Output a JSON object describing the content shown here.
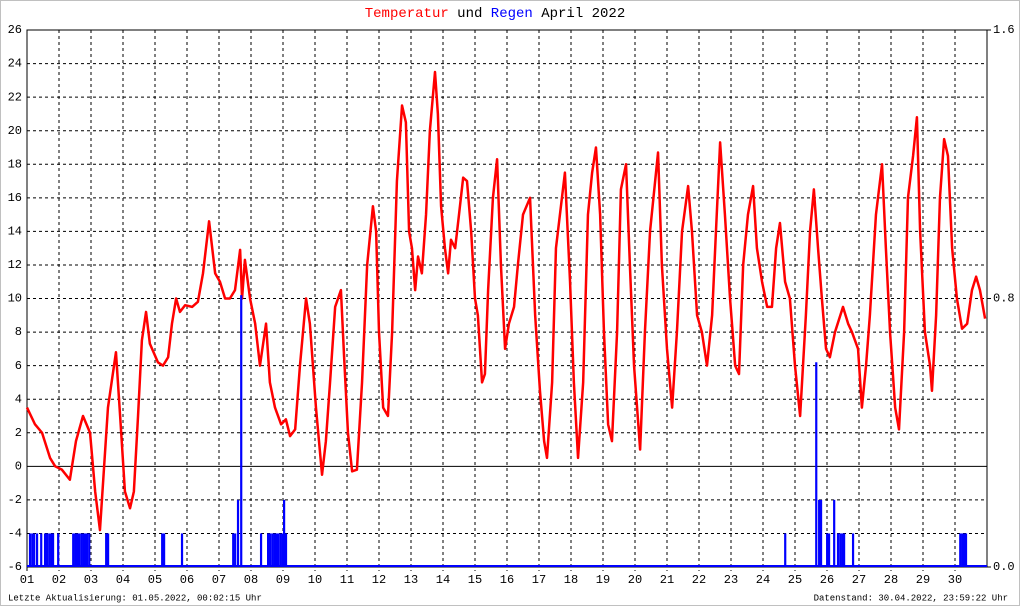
{
  "chart_data": {
    "type": "line",
    "title_joiner": "und",
    "title_suffix": "April 2022",
    "xlim": [
      1,
      31
    ],
    "xticks": [
      {
        "value": 1,
        "label": "01"
      },
      {
        "value": 2,
        "label": "02"
      },
      {
        "value": 3,
        "label": "03"
      },
      {
        "value": 4,
        "label": "04"
      },
      {
        "value": 5,
        "label": "05"
      },
      {
        "value": 6,
        "label": "06"
      },
      {
        "value": 7,
        "label": "07"
      },
      {
        "value": 8,
        "label": "08"
      },
      {
        "value": 9,
        "label": "09"
      },
      10,
      11,
      12,
      13,
      14,
      15,
      16,
      17,
      18,
      19,
      20,
      21,
      22,
      23,
      24,
      25,
      26,
      27,
      28,
      29,
      30
    ],
    "ylim": [
      -6,
      26
    ],
    "yticks": [
      -6,
      -4,
      -2,
      0,
      2,
      4,
      6,
      8,
      10,
      12,
      14,
      16,
      18,
      20,
      22,
      24,
      26
    ],
    "y2lim": [
      0,
      1.6
    ],
    "y2ticks": [
      {
        "value": 0,
        "label": "0.0"
      },
      0.8,
      1.6
    ],
    "grid": true,
    "series": [
      {
        "name": "Temperatur",
        "color": "#ff0000",
        "x": [
          1.0,
          1.25,
          1.47,
          1.72,
          1.88,
          2.09,
          2.34,
          2.53,
          2.75,
          2.97,
          3.13,
          3.28,
          3.41,
          3.53,
          3.78,
          3.91,
          4.06,
          4.22,
          4.34,
          4.47,
          4.59,
          4.72,
          4.84,
          5.09,
          5.25,
          5.41,
          5.53,
          5.66,
          5.78,
          5.94,
          6.16,
          6.34,
          6.5,
          6.69,
          6.88,
          7.03,
          7.19,
          7.34,
          7.5,
          7.66,
          7.72,
          7.81,
          7.97,
          8.13,
          8.28,
          8.47,
          8.59,
          8.75,
          8.94,
          9.09,
          9.22,
          9.38,
          9.53,
          9.72,
          9.84,
          10.03,
          10.22,
          10.34,
          10.47,
          10.63,
          10.81,
          10.91,
          11.03,
          11.16,
          11.31,
          11.47,
          11.63,
          11.81,
          11.91,
          12.0,
          12.13,
          12.28,
          12.41,
          12.56,
          12.72,
          12.84,
          12.94,
          13.03,
          13.13,
          13.22,
          13.34,
          13.47,
          13.59,
          13.75,
          13.84,
          13.94,
          14.06,
          14.16,
          14.25,
          14.38,
          14.5,
          14.63,
          14.75,
          14.88,
          15.0,
          15.09,
          15.22,
          15.31,
          15.41,
          15.56,
          15.69,
          15.81,
          15.94,
          16.06,
          16.22,
          16.34,
          16.5,
          16.72,
          16.88,
          17.03,
          17.16,
          17.25,
          17.41,
          17.53,
          17.81,
          17.97,
          18.09,
          18.22,
          18.38,
          18.53,
          18.66,
          18.78,
          18.91,
          19.03,
          19.16,
          19.28,
          19.44,
          19.56,
          19.72,
          19.84,
          19.97,
          20.16,
          20.31,
          20.47,
          20.72,
          20.84,
          21.0,
          21.16,
          21.31,
          21.47,
          21.66,
          21.78,
          21.94,
          22.09,
          22.25,
          22.41,
          22.53,
          22.66,
          22.81,
          22.97,
          23.13,
          23.25,
          23.38,
          23.53,
          23.69,
          23.81,
          23.97,
          24.13,
          24.28,
          24.41,
          24.53,
          24.69,
          24.84,
          25.0,
          25.16,
          25.34,
          25.47,
          25.59,
          25.72,
          25.84,
          25.97,
          26.09,
          26.25,
          26.5,
          26.66,
          26.78,
          26.97,
          27.09,
          27.22,
          27.34,
          27.53,
          27.72,
          27.84,
          27.97,
          28.13,
          28.25,
          28.41,
          28.53,
          28.69,
          28.81,
          28.91,
          29.06,
          29.22,
          29.28,
          29.41,
          29.53,
          29.66,
          29.78,
          29.91,
          30.06,
          30.22,
          30.38,
          30.53,
          30.66,
          30.78,
          30.94
        ],
        "values": [
          3.5,
          2.5,
          2.0,
          0.5,
          0,
          -0.2,
          -0.8,
          1.5,
          3.0,
          2.0,
          -1.5,
          -3.8,
          0,
          3.5,
          6.8,
          3,
          -1.5,
          -2.5,
          -1.5,
          3,
          7.5,
          9.2,
          7.3,
          6.2,
          6.0,
          6.5,
          8.5,
          10.0,
          9.2,
          9.6,
          9.5,
          9.8,
          11.5,
          14.6,
          11.5,
          11.0,
          10,
          10,
          10.5,
          12.9,
          10.0,
          12.3,
          10.0,
          8.5,
          6.0,
          8.5,
          5.0,
          3.5,
          2.5,
          2.8,
          1.8,
          2.2,
          6,
          10.0,
          8.5,
          3.5,
          -0.5,
          1.5,
          5,
          9.5,
          10.5,
          6.5,
          2,
          -0.3,
          -0.2,
          5,
          12,
          15.5,
          14,
          8,
          3.5,
          3.0,
          8,
          17,
          21.5,
          20.5,
          14,
          13,
          10.5,
          12.5,
          11.5,
          15,
          20,
          23.5,
          21,
          15.5,
          13,
          11.5,
          13.5,
          13.0,
          15,
          17.2,
          17,
          14,
          10,
          9,
          5,
          5.5,
          10.5,
          16,
          18.3,
          12,
          7,
          8.5,
          9.5,
          12,
          15,
          16,
          9,
          4.5,
          1.5,
          0.5,
          5,
          13,
          17.5,
          11,
          5,
          0.5,
          5,
          15,
          17.5,
          19,
          15,
          8,
          2.5,
          1.5,
          8,
          16.5,
          18,
          12,
          6,
          1.0,
          8,
          14,
          18.7,
          12,
          7,
          3.5,
          8,
          14,
          16.7,
          14,
          9,
          8,
          6.0,
          9,
          14,
          19.3,
          15,
          10,
          6,
          5.5,
          12,
          15,
          16.7,
          13,
          11,
          9.5,
          9.5,
          13,
          14.5,
          11,
          10,
          6,
          3,
          9,
          14,
          16.5,
          13,
          10,
          7,
          6.5,
          8,
          9.5,
          8.5,
          8,
          7,
          3.5,
          6,
          9,
          15,
          18,
          13,
          8,
          3.5,
          2.2,
          8,
          16,
          18.5,
          20.8,
          14,
          8,
          6,
          4.5,
          9,
          16,
          19.5,
          18.5,
          13,
          10,
          8.2,
          8.5,
          10.5,
          11.3,
          10.5,
          8.8
        ]
      },
      {
        "name": "Regen",
        "color": "#0000ff",
        "axis": "y2",
        "x": [
          1.06,
          1.13,
          1.19,
          1.28,
          1.41,
          1.53,
          1.59,
          1.66,
          1.72,
          1.78,
          1.94,
          2.41,
          2.47,
          2.53,
          2.59,
          2.66,
          2.72,
          2.78,
          2.84,
          2.91,
          3.44,
          3.5,
          5.19,
          5.25,
          5.81,
          7.41,
          7.47,
          7.56,
          7.66,
          8.28,
          8.5,
          8.56,
          8.63,
          8.69,
          8.75,
          8.81,
          8.88,
          8.94,
          9.0,
          9.06,
          24.66,
          25.63,
          25.72,
          25.78,
          25.97,
          26.03,
          26.19,
          26.31,
          26.38,
          26.44,
          26.5,
          26.78,
          30.13,
          30.19,
          30.25,
          30.31
        ],
        "values": [
          0.1,
          0.1,
          0.1,
          0.1,
          0.1,
          0.1,
          0.1,
          0.1,
          0.1,
          0.1,
          0.1,
          0.1,
          0.1,
          0.1,
          0.1,
          0.1,
          0.1,
          0.1,
          0.1,
          0.1,
          0.1,
          0.1,
          0.1,
          0.1,
          0.1,
          0.1,
          0.1,
          0.2,
          0.81,
          0.1,
          0.1,
          0.1,
          0.1,
          0.1,
          0.1,
          0.1,
          0.1,
          0.1,
          0.2,
          0.1,
          0.1,
          0.61,
          0.2,
          0.2,
          0.1,
          0.1,
          0.2,
          0.1,
          0.1,
          0.1,
          0.1,
          0.1,
          0.1,
          0.1,
          0.1,
          0.1
        ]
      }
    ],
    "footer_left": "Letzte Aktualisierung: 01.05.2022, 00:02:15 Uhr",
    "footer_right": "Datenstand: 30.04.2022, 23:59:22 Uhr"
  }
}
